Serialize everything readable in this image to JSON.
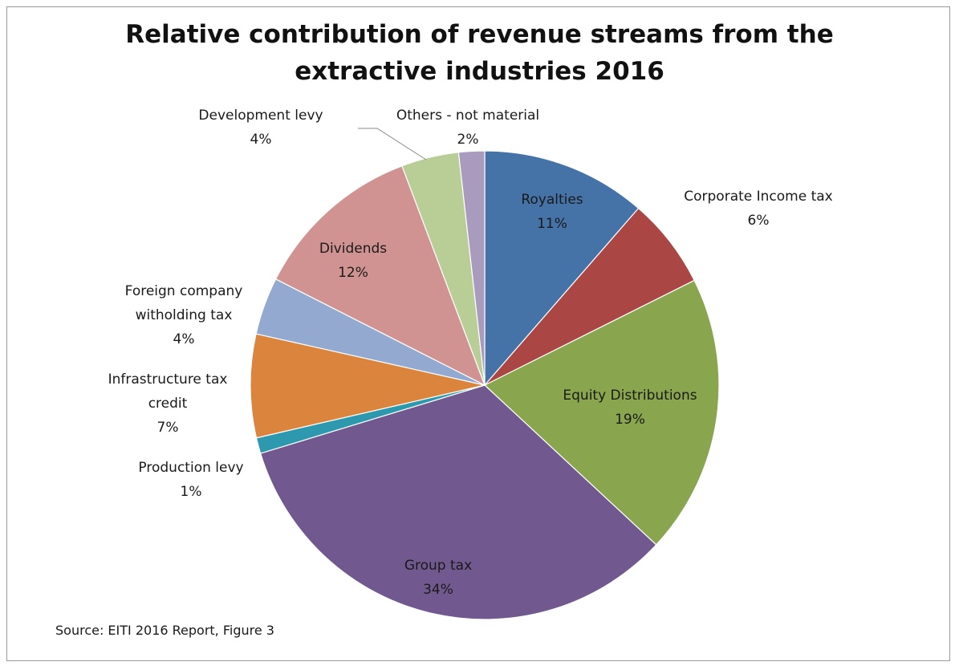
{
  "chart_data": {
    "type": "pie",
    "title_lines": [
      "Relative contribution of revenue streams from the",
      "extractive industries 2016"
    ],
    "slices": [
      {
        "label_lines": [
          "Royalties"
        ],
        "pct_text": "11%",
        "value": 11.5,
        "color": "#4572A7"
      },
      {
        "label_lines": [
          "Corporate Income tax"
        ],
        "pct_text": "6%",
        "value": 6.3,
        "color": "#AA4643"
      },
      {
        "label_lines": [
          "Equity Distributions"
        ],
        "pct_text": "19%",
        "value": 19.5,
        "color": "#89A54E"
      },
      {
        "label_lines": [
          "Group tax"
        ],
        "pct_text": "34%",
        "value": 33.7,
        "color": "#71588F"
      },
      {
        "label_lines": [
          "Production levy"
        ],
        "pct_text": "1%",
        "value": 1.1,
        "color": "#2E98AE"
      },
      {
        "label_lines": [
          "Infrastructure tax",
          "credit"
        ],
        "pct_text": "7%",
        "value": 7.2,
        "color": "#DB843D"
      },
      {
        "label_lines": [
          "Foreign company",
          "witholding tax"
        ],
        "pct_text": "4%",
        "value": 4.0,
        "color": "#93A9CF"
      },
      {
        "label_lines": [
          "Dividends"
        ],
        "pct_text": "12%",
        "value": 11.9,
        "color": "#D19392"
      },
      {
        "label_lines": [
          "Development levy"
        ],
        "pct_text": "4%",
        "value": 4.0,
        "color": "#B9CD96"
      },
      {
        "label_lines": [
          "Others - not material"
        ],
        "pct_text": "2%",
        "value": 1.8,
        "color": "#A99BBD"
      }
    ],
    "start_angle_deg": 0,
    "direction": "clockwise",
    "source": "Source: EITI 2016 Report, Figure 3"
  }
}
